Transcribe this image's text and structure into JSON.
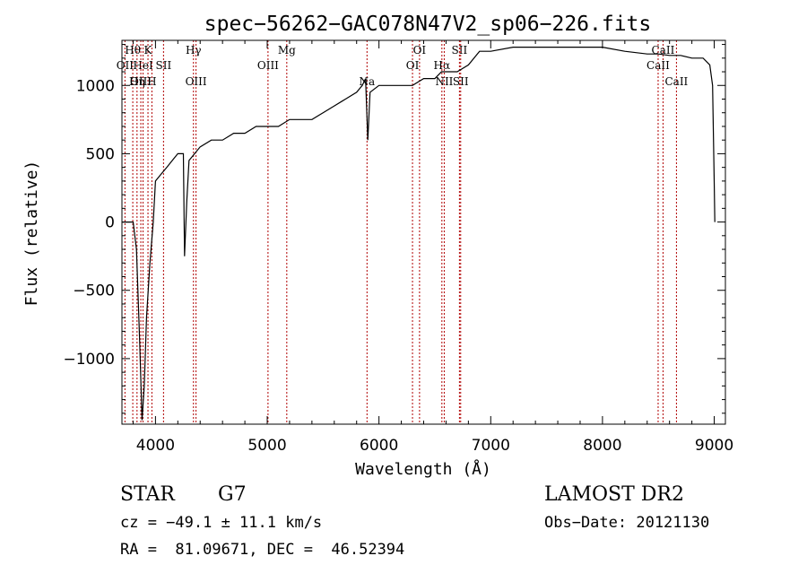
{
  "chart_data": {
    "type": "line",
    "title": "spec−56262−GAC078N47V2_sp06−226.fits",
    "xlabel": "Wavelength (Å)",
    "ylabel": "Flux (relative)",
    "xlim": [
      3700,
      9100
    ],
    "ylim": [
      -1480,
      1330
    ],
    "x_ticks": [
      {
        "value": 4000,
        "label": "4000"
      },
      {
        "value": 5000,
        "label": "5000"
      },
      {
        "value": 6000,
        "label": "6000"
      },
      {
        "value": 7000,
        "label": "7000"
      },
      {
        "value": 8000,
        "label": "8000"
      },
      {
        "value": 9000,
        "label": "9000"
      }
    ],
    "y_ticks": [
      {
        "value": -1000,
        "label": "−1000"
      },
      {
        "value": -500,
        "label": "−500"
      },
      {
        "value": 0,
        "label": "0"
      },
      {
        "value": 500,
        "label": "500"
      },
      {
        "value": 1000,
        "label": "1000"
      }
    ],
    "grid": false,
    "series": [
      {
        "color": "#000000",
        "x": [
          3700,
          3800,
          3830,
          3860,
          3880,
          3900,
          3920,
          3950,
          3980,
          4000,
          4050,
          4100,
          4150,
          4200,
          4250,
          4260,
          4280,
          4300,
          4350,
          4400,
          4500,
          4600,
          4700,
          4800,
          4900,
          5000,
          5100,
          5200,
          5300,
          5400,
          5500,
          5600,
          5700,
          5800,
          5850,
          5880,
          5900,
          5920,
          6000,
          6100,
          6200,
          6300,
          6400,
          6500,
          6560,
          6600,
          6700,
          6800,
          6900,
          7000,
          7200,
          7400,
          7600,
          7800,
          8000,
          8200,
          8400,
          8500,
          8600,
          8700,
          8800,
          8900,
          8960,
          8985,
          9000,
          9005
        ],
        "y": [
          0,
          0,
          -200,
          -900,
          -1450,
          -1200,
          -700,
          -300,
          0,
          300,
          350,
          400,
          450,
          500,
          500,
          -250,
          150,
          450,
          500,
          550,
          600,
          600,
          650,
          650,
          700,
          700,
          700,
          750,
          750,
          750,
          800,
          850,
          900,
          950,
          1000,
          1050,
          600,
          950,
          1000,
          1000,
          1000,
          1000,
          1050,
          1050,
          1100,
          1100,
          1100,
          1150,
          1250,
          1250,
          1280,
          1280,
          1280,
          1280,
          1280,
          1250,
          1230,
          1230,
          1220,
          1220,
          1200,
          1200,
          1150,
          1000,
          300,
          0
        ]
      }
    ],
    "annotations": [
      {
        "label": "Hθ",
        "wavelength": 3797,
        "row": 0
      },
      {
        "label": "K",
        "wavelength": 3933,
        "row": 0
      },
      {
        "label": "Hγ",
        "wavelength": 4340,
        "row": 0
      },
      {
        "label": "Mg",
        "wavelength": 5175,
        "row": 0
      },
      {
        "label": "OI",
        "wavelength": 6363,
        "row": 0
      },
      {
        "label": "SII",
        "wavelength": 6720,
        "row": 0
      },
      {
        "label": "CaII",
        "wavelength": 8542,
        "row": 0
      },
      {
        "label": "OII",
        "wavelength": 3727,
        "row": 1
      },
      {
        "label": "HeI",
        "wavelength": 3889,
        "row": 1
      },
      {
        "label": "SII",
        "wavelength": 4072,
        "row": 1
      },
      {
        "label": "OIII",
        "wavelength": 5007,
        "row": 1
      },
      {
        "label": "OI",
        "wavelength": 6300,
        "row": 1
      },
      {
        "label": "Hα",
        "wavelength": 6563,
        "row": 1
      },
      {
        "label": "CaII",
        "wavelength": 8498,
        "row": 1
      },
      {
        "label": "OIII",
        "wavelength": 3869,
        "row": 2
      },
      {
        "label": "Hη",
        "wavelength": 3835,
        "row": 2
      },
      {
        "label": "H",
        "wavelength": 3968,
        "row": 2
      },
      {
        "label": "OIII",
        "wavelength": 4363,
        "row": 2
      },
      {
        "label": "Na",
        "wavelength": 5893,
        "row": 2
      },
      {
        "label": "NII",
        "wavelength": 6584,
        "row": 2
      },
      {
        "label": "SII",
        "wavelength": 6731,
        "row": 2
      },
      {
        "label": "CaII",
        "wavelength": 8662,
        "row": 2
      }
    ]
  },
  "info": {
    "object_class": "STAR",
    "subclass": "G7",
    "survey": "LAMOST DR2",
    "redshift": "cz = −49.1 ± 11.1 km/s",
    "obs_date": "Obs−Date: 20121130",
    "coords": "RA =  81.09671, DEC =  46.52394"
  },
  "colors": {
    "line_markers": "#b00000",
    "spectrum": "#000000",
    "axes": "#000000"
  }
}
